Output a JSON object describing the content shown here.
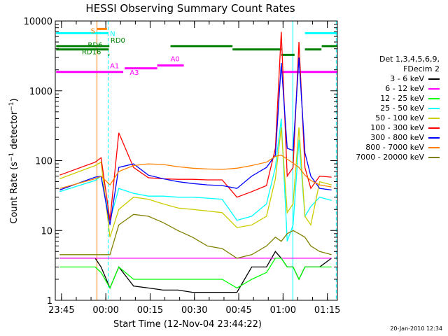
{
  "chart_data": {
    "type": "line",
    "title": "HESSI Observing Summary Count Rates",
    "xlabel": "Start Time (12-Nov-04 23:44:22)",
    "ylabel": "Count Rate (s⁻¹ detector⁻¹)",
    "ylabel_parts": {
      "pre": "Count Rate (s",
      "sup1": "−1",
      "mid": " detector",
      "sup2": "−1",
      "post": ")"
    },
    "ylog": true,
    "ylim": [
      1,
      10000
    ],
    "xlim": [
      -1.5,
      94
    ],
    "x_units": "minutes after 23:44:22",
    "xtick_labels": [
      {
        "t": 0.6,
        "label": "23:45"
      },
      {
        "t": 15.6,
        "label": "00:00"
      },
      {
        "t": 30.6,
        "label": "00:15"
      },
      {
        "t": 45.6,
        "label": "00:30"
      },
      {
        "t": 60.6,
        "label": "00:45"
      },
      {
        "t": 75.6,
        "label": "01:00"
      },
      {
        "t": 90.6,
        "label": "01:15"
      }
    ],
    "ytick_labels": [
      {
        "v": 1,
        "label": "1"
      },
      {
        "v": 10,
        "label": "10"
      },
      {
        "v": 100,
        "label": "100"
      },
      {
        "v": 1000,
        "label": "1000"
      },
      {
        "v": 10000,
        "label": "10000"
      }
    ],
    "legend_header": [
      "Det 1,3,4,5,6,9,",
      "FDecim 2"
    ],
    "legend_position": "right",
    "series": [
      {
        "name": "3 - 6 keV",
        "color": "#000000",
        "x": [
          0,
          12,
          14,
          17,
          20,
          25,
          30,
          35,
          40,
          45,
          50,
          55,
          60,
          65,
          70,
          73,
          75,
          77,
          79,
          81,
          83,
          85,
          88,
          92
        ],
        "y": [
          4,
          4,
          3,
          1.5,
          3,
          1.6,
          1.5,
          1.4,
          1.4,
          1.3,
          1.3,
          1.3,
          1.3,
          3,
          3,
          5,
          4,
          3,
          3,
          2,
          3,
          3,
          3,
          4
        ]
      },
      {
        "name": "6 - 12 keV",
        "color": "#ff00ff",
        "x": [
          0,
          12,
          14,
          17,
          20,
          25,
          30,
          35,
          40,
          45,
          50,
          55,
          60,
          65,
          70,
          73,
          75,
          77,
          79,
          81,
          83,
          85,
          88,
          92
        ],
        "y": [
          4,
          4,
          4,
          4,
          4,
          4,
          4,
          4,
          4,
          4,
          4,
          4,
          4,
          4,
          4,
          4,
          4,
          4,
          4,
          4,
          4,
          4,
          4,
          4
        ]
      },
      {
        "name": "12 - 25 keV",
        "color": "#00ff00",
        "x": [
          0,
          12,
          14,
          17,
          20,
          25,
          30,
          35,
          40,
          45,
          50,
          55,
          60,
          65,
          70,
          73,
          75,
          77,
          79,
          81,
          83,
          85,
          88,
          92
        ],
        "y": [
          3,
          3,
          2.5,
          1.5,
          3,
          2,
          2,
          2,
          2,
          2,
          2,
          2,
          1.5,
          2,
          2.5,
          4,
          4,
          3,
          3,
          2,
          3,
          3,
          3,
          3
        ]
      },
      {
        "name": "25 - 50 keV",
        "color": "#00ffff",
        "x": [
          0,
          12,
          14,
          17,
          20,
          25,
          30,
          35,
          40,
          45,
          50,
          55,
          60,
          65,
          70,
          73,
          75,
          77,
          79,
          81,
          83,
          85,
          88,
          92
        ],
        "y": [
          36,
          52,
          60,
          14,
          40,
          34,
          31,
          31,
          30,
          30,
          29,
          28,
          14,
          16,
          24,
          80,
          400,
          7,
          12,
          200,
          16,
          22,
          30,
          27
        ]
      },
      {
        "name": "50 - 100 keV",
        "color": "#cccc00",
        "x": [
          0,
          12,
          14,
          17,
          20,
          25,
          30,
          35,
          40,
          45,
          50,
          55,
          60,
          65,
          70,
          73,
          75,
          77,
          79,
          81,
          83,
          85,
          88,
          92
        ],
        "y": [
          55,
          85,
          95,
          8,
          20,
          30,
          28,
          24,
          21,
          20,
          19,
          18,
          11,
          12,
          16,
          55,
          300,
          18,
          24,
          300,
          16,
          12,
          50,
          45
        ]
      },
      {
        "name": "100 - 300 keV",
        "color": "#ff0000",
        "x": [
          0,
          12,
          14,
          17,
          20,
          25,
          30,
          35,
          40,
          45,
          50,
          55,
          60,
          65,
          70,
          73,
          75,
          77,
          79,
          81,
          83,
          85,
          88,
          92
        ],
        "y": [
          62,
          95,
          110,
          14,
          250,
          80,
          57,
          55,
          54,
          54,
          53,
          53,
          30,
          36,
          44,
          150,
          7000,
          60,
          80,
          5000,
          80,
          40,
          60,
          58
        ]
      },
      {
        "name": "300 - 800 keV",
        "color": "#0000ff",
        "x": [
          0,
          12,
          14,
          17,
          20,
          25,
          30,
          35,
          40,
          45,
          50,
          55,
          60,
          65,
          70,
          73,
          75,
          77,
          79,
          81,
          83,
          85,
          88,
          92
        ],
        "y": [
          38,
          58,
          60,
          12,
          80,
          90,
          62,
          55,
          50,
          47,
          45,
          44,
          40,
          60,
          80,
          120,
          2500,
          150,
          140,
          3000,
          130,
          60,
          40,
          38
        ]
      },
      {
        "name": "800 - 7000 keV",
        "color": "#ff8000",
        "x": [
          0,
          12,
          14,
          17,
          20,
          25,
          30,
          35,
          40,
          45,
          50,
          55,
          60,
          65,
          70,
          73,
          75,
          77,
          79,
          81,
          83,
          85,
          88,
          92
        ],
        "y": [
          40,
          55,
          60,
          45,
          70,
          85,
          90,
          88,
          82,
          78,
          76,
          75,
          78,
          85,
          95,
          115,
          120,
          105,
          92,
          80,
          62,
          52,
          45,
          42
        ]
      },
      {
        "name": "7000 - 20000 keV",
        "color": "#808000",
        "x": [
          0,
          12,
          14,
          17,
          20,
          25,
          30,
          35,
          40,
          45,
          50,
          55,
          60,
          65,
          70,
          73,
          75,
          77,
          79,
          81,
          83,
          85,
          88,
          92
        ],
        "y": [
          4.5,
          4.5,
          4.5,
          4.5,
          12,
          17,
          16,
          13,
          10,
          8,
          6,
          5.5,
          4,
          4.5,
          6,
          8,
          7,
          9,
          10,
          9,
          8,
          6,
          5,
          4.5
        ]
      }
    ],
    "annotations": {
      "colored_lines": [
        {
          "name": "S",
          "color": "#ff8000",
          "t": [
            12.5,
            16
          ]
        },
        {
          "name": "N",
          "color": "#00ffff",
          "t": [
            -1.2,
            16.5
          ]
        },
        {
          "name": "N",
          "color": "#00ffff",
          "t": [
            83,
            94
          ]
        },
        {
          "name": "RD0",
          "color": "#008000",
          "t": [
            -1.2,
            16.8
          ]
        },
        {
          "name": "RD0",
          "color": "#008000",
          "t": [
            37.5,
            58.5
          ]
        },
        {
          "name": "RD0",
          "color": "#008000",
          "t": [
            88.7,
            94
          ]
        },
        {
          "name": "RD6",
          "color": "#008000",
          "t": [
            -1.2,
            16.6
          ]
        },
        {
          "name": "RD6",
          "color": "#008000",
          "t": [
            58.5,
            75
          ]
        },
        {
          "name": "RD6",
          "color": "#008000",
          "t": [
            83,
            88.6
          ]
        },
        {
          "name": "RD16",
          "color": "#008000",
          "t": [
            16.5,
            16.8
          ]
        },
        {
          "name": "RD16",
          "color": "#008000",
          "t": [
            75,
            79.5
          ]
        },
        {
          "name": "A0",
          "color": "#ff00ff",
          "t": [
            33,
            42
          ]
        },
        {
          "name": "A1",
          "color": "#ff00ff",
          "t": [
            22,
            33
          ]
        },
        {
          "name": "A3",
          "color": "#ff00ff",
          "t": [
            -1.2,
            21.5
          ]
        },
        {
          "name": "A3",
          "color": "#ff00ff",
          "t": [
            75,
            94
          ]
        }
      ],
      "labels": [
        {
          "text": "S",
          "color": "#ff8000",
          "t": 10.5,
          "v": 6700
        },
        {
          "text": "N",
          "color": "#00ffff",
          "t": 17.0,
          "v": 6100
        },
        {
          "text": "RD0",
          "color": "#008000",
          "t": 17.2,
          "v": 4900
        },
        {
          "text": "RD6",
          "color": "#008000",
          "t": 9.5,
          "v": 4200
        },
        {
          "text": "RD16",
          "color": "#008000",
          "t": 7.5,
          "v": 3350
        },
        {
          "text": "A0",
          "color": "#ff00ff",
          "t": 37.5,
          "v": 2650
        },
        {
          "text": "A1",
          "color": "#ff00ff",
          "t": 17.0,
          "v": 2100
        },
        {
          "text": "A3",
          "color": "#ff00ff",
          "t": 23.7,
          "v": 1700
        }
      ],
      "vertical_lines": [
        {
          "color": "#ff8000",
          "style": "solid",
          "t": 12.6
        },
        {
          "color": "#00ffff",
          "style": "dashed",
          "t": 16.4
        },
        {
          "color": "#00ffff",
          "style": "solid",
          "t": 78.9
        },
        {
          "color": "#00ffff",
          "style": "dashed",
          "t": 93.6
        }
      ]
    }
  },
  "timestamp": "20-Jan-2010 12:34"
}
